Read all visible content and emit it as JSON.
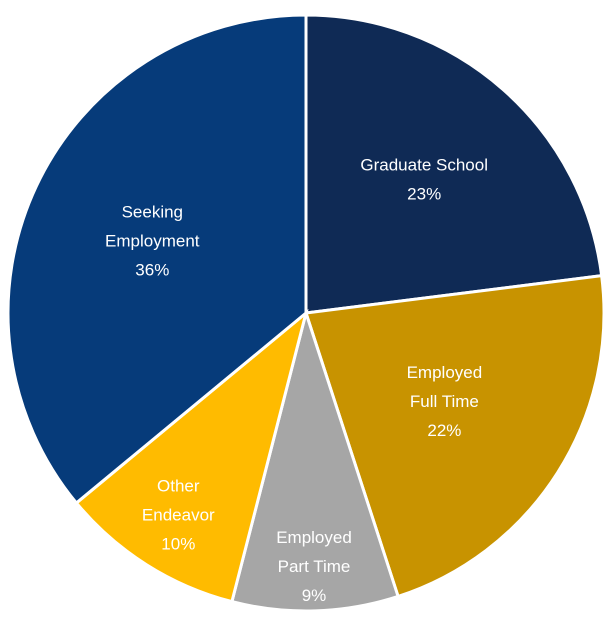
{
  "chart_data": {
    "type": "pie",
    "title": "",
    "start_angle_deg": 0,
    "direction": "clockwise",
    "slices": [
      {
        "label_lines": [
          "Graduate School"
        ],
        "percent_label": "23%",
        "value": 23,
        "color": "#0f2a55",
        "text_color": "#ffffff"
      },
      {
        "label_lines": [
          "Employed",
          "Full Time"
        ],
        "percent_label": "22%",
        "value": 22,
        "color": "#c89300",
        "text_color": "#ffffff"
      },
      {
        "label_lines": [
          "Employed",
          "Part Time"
        ],
        "percent_label": "9%",
        "value": 9,
        "color": "#a6a6a6",
        "text_color": "#ffffff"
      },
      {
        "label_lines": [
          "Other",
          "Endeavor"
        ],
        "percent_label": "10%",
        "value": 10,
        "color": "#ffbb00",
        "text_color": "#ffffff"
      },
      {
        "label_lines": [
          "Seeking",
          "Employment"
        ],
        "percent_label": "36%",
        "value": 36,
        "color": "#063b7a",
        "text_color": "#ffffff"
      }
    ]
  }
}
